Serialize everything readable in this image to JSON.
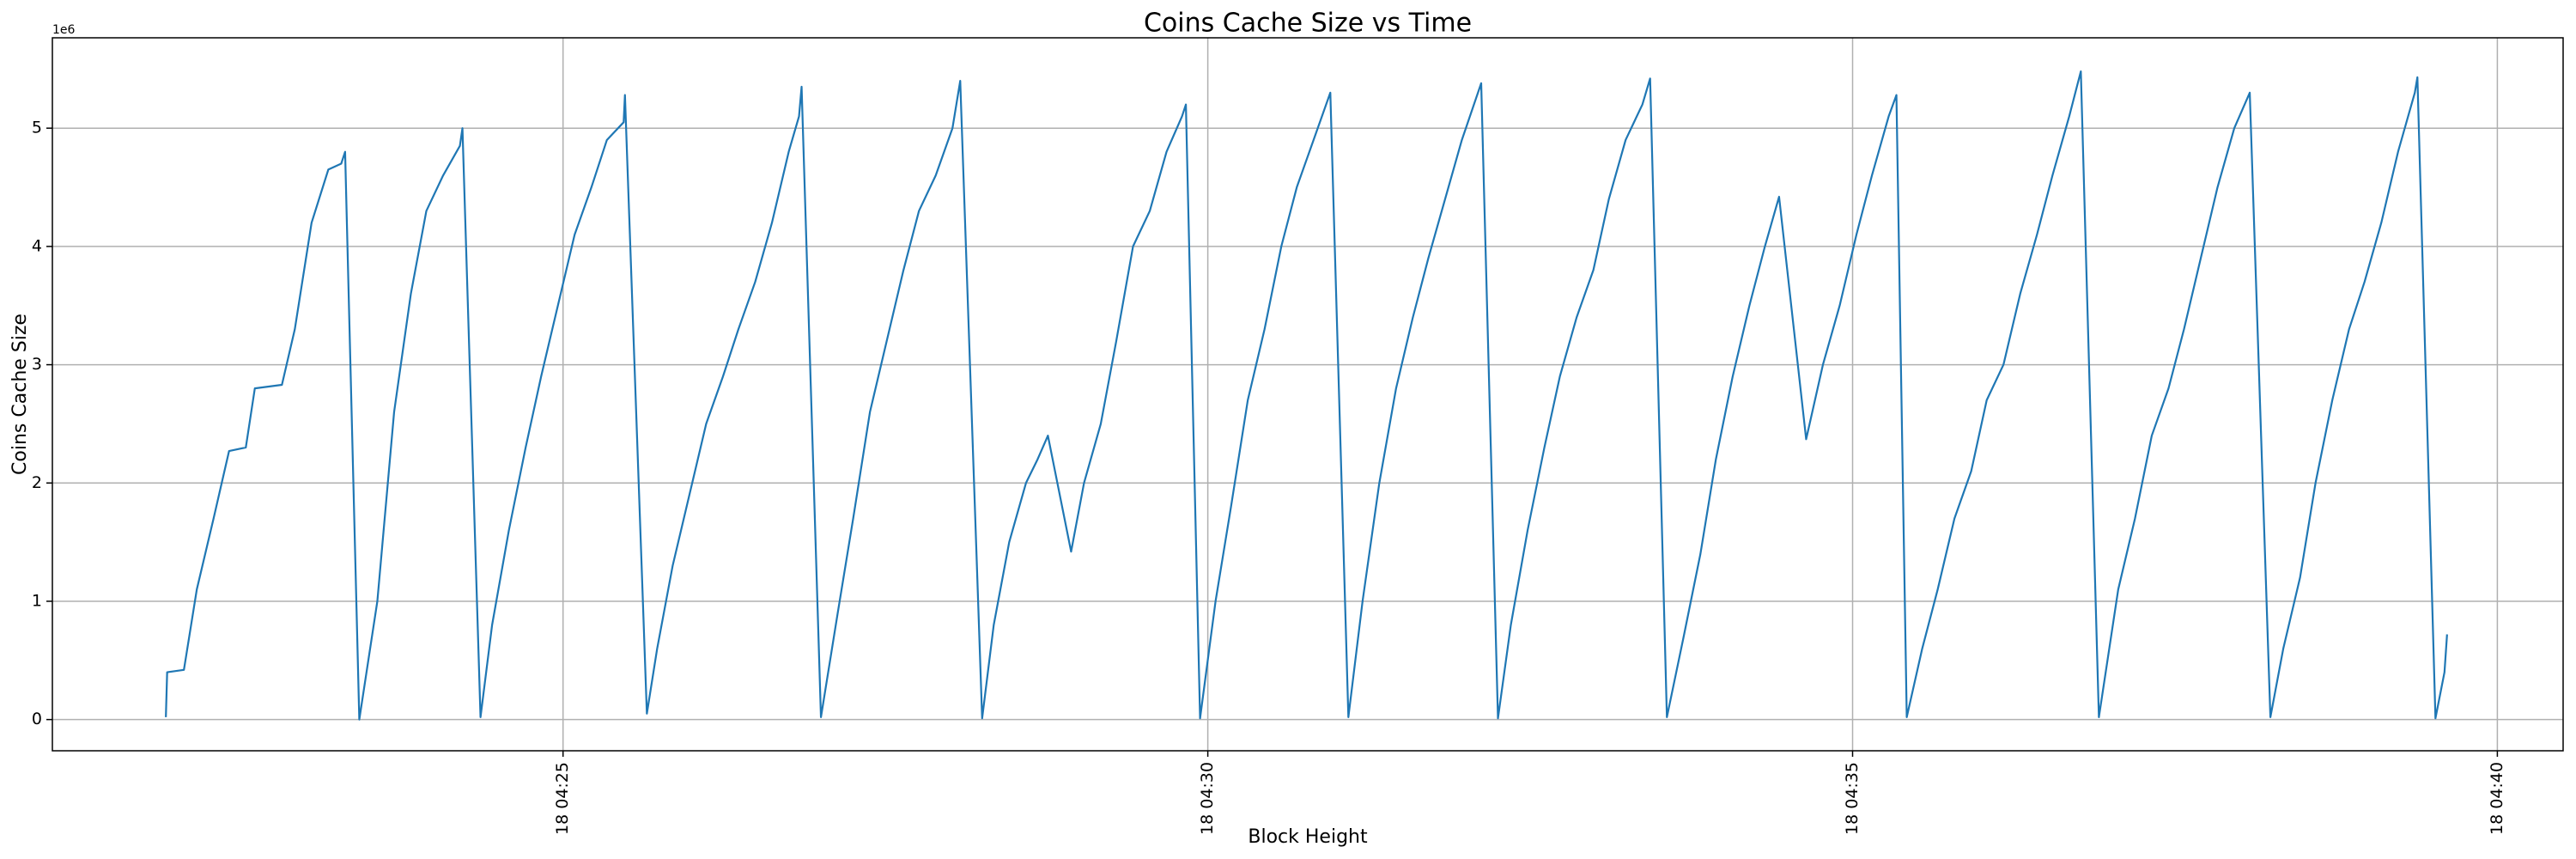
{
  "chart_data": {
    "type": "line",
    "title": "Coins Cache Size vs Time",
    "xlabel": "Block Height",
    "ylabel": "Coins Cache Size",
    "y_offset_text": "1e6",
    "grid": true,
    "xlim": [
      21.04,
      40.51
    ],
    "xticks": [
      {
        "value": 25,
        "label": "18 04:25"
      },
      {
        "value": 30,
        "label": "18 04:30"
      },
      {
        "value": 35,
        "label": "18 04:35"
      },
      {
        "value": 40,
        "label": "18 04:40"
      }
    ],
    "ylim": [
      -264000,
      5764000
    ],
    "yticks": [
      0,
      {
        "value": 1000000,
        "label": "1"
      },
      {
        "value": 2000000,
        "label": "2"
      },
      {
        "value": 3000000,
        "label": "3"
      },
      {
        "value": 4000000,
        "label": "4"
      },
      {
        "value": 5000000,
        "label": "5"
      }
    ],
    "x": [
      21.92,
      21.93,
      22.06,
      22.16,
      22.29,
      22.41,
      22.54,
      22.61,
      22.82,
      22.92,
      23.05,
      23.18,
      23.28,
      23.31,
      23.42,
      23.56,
      23.69,
      23.82,
      23.94,
      24.07,
      24.2,
      24.22,
      24.36,
      24.45,
      24.58,
      24.71,
      24.83,
      24.96,
      25.09,
      25.22,
      25.34,
      25.47,
      25.48,
      25.65,
      25.73,
      25.85,
      25.98,
      26.11,
      26.24,
      26.36,
      26.49,
      26.62,
      26.75,
      26.83,
      26.85,
      27.0,
      27.13,
      27.25,
      27.38,
      27.51,
      27.64,
      27.76,
      27.89,
      28.02,
      28.08,
      28.25,
      28.34,
      28.46,
      28.59,
      28.68,
      28.76,
      28.94,
      29.04,
      29.17,
      29.29,
      29.42,
      29.55,
      29.68,
      29.8,
      29.83,
      29.94,
      30.06,
      30.18,
      30.31,
      30.44,
      30.57,
      30.69,
      30.82,
      30.95,
      31.09,
      31.2,
      31.33,
      31.46,
      31.59,
      31.71,
      31.84,
      31.97,
      32.12,
      32.25,
      32.35,
      32.48,
      32.61,
      32.73,
      32.86,
      32.99,
      33.11,
      33.24,
      33.37,
      33.43,
      33.56,
      33.69,
      33.82,
      33.94,
      34.07,
      34.2,
      34.32,
      34.43,
      34.64,
      34.77,
      34.9,
      35.03,
      35.15,
      35.28,
      35.34,
      35.42,
      35.54,
      35.66,
      35.79,
      35.92,
      36.04,
      36.17,
      36.3,
      36.43,
      36.55,
      36.68,
      36.77,
      36.91,
      37.06,
      37.19,
      37.32,
      37.45,
      37.57,
      37.7,
      37.83,
      37.96,
      38.08,
      38.24,
      38.34,
      38.47,
      38.59,
      38.72,
      38.85,
      38.97,
      39.1,
      39.23,
      39.36,
      39.38,
      39.52,
      39.59,
      39.61
    ],
    "series": [
      {
        "name": "Coins Cache Size",
        "color": "#1f77b4",
        "values": [
          20000,
          400000,
          420000,
          1100000,
          1700000,
          2270000,
          2300000,
          2800000,
          2830000,
          3300000,
          4200000,
          4650000,
          4700000,
          4800000,
          0,
          1000000,
          2600000,
          3600000,
          4300000,
          4600000,
          4850000,
          5000000,
          20000,
          800000,
          1600000,
          2300000,
          2900000,
          3500000,
          4100000,
          4500000,
          4900000,
          5050000,
          5280000,
          50000,
          600000,
          1300000,
          1900000,
          2500000,
          2900000,
          3300000,
          3700000,
          4200000,
          4800000,
          5100000,
          5350000,
          20000,
          900000,
          1700000,
          2600000,
          3200000,
          3800000,
          4300000,
          4600000,
          5000000,
          5400000,
          10000,
          800000,
          1500000,
          2000000,
          2200000,
          2400000,
          1420000,
          2000000,
          2500000,
          3200000,
          4000000,
          4300000,
          4800000,
          5100000,
          5200000,
          10000,
          1000000,
          1800000,
          2700000,
          3300000,
          4000000,
          4500000,
          4900000,
          5300000,
          20000,
          1000000,
          2000000,
          2800000,
          3400000,
          3900000,
          4400000,
          4900000,
          5380000,
          10000,
          800000,
          1600000,
          2300000,
          2900000,
          3400000,
          3800000,
          4400000,
          4900000,
          5200000,
          5420000,
          20000,
          700000,
          1400000,
          2200000,
          2900000,
          3500000,
          4000000,
          4420000,
          2370000,
          3000000,
          3500000,
          4100000,
          4600000,
          5100000,
          5280000,
          20000,
          600000,
          1100000,
          1700000,
          2100000,
          2700000,
          3000000,
          3600000,
          4100000,
          4600000,
          5100000,
          5480000,
          20000,
          1100000,
          1700000,
          2400000,
          2800000,
          3300000,
          3900000,
          4500000,
          5000000,
          5300000,
          20000,
          600000,
          1200000,
          2000000,
          2700000,
          3300000,
          3700000,
          4200000,
          4800000,
          5300000,
          5430000,
          10000,
          400000,
          720000
        ]
      }
    ]
  }
}
